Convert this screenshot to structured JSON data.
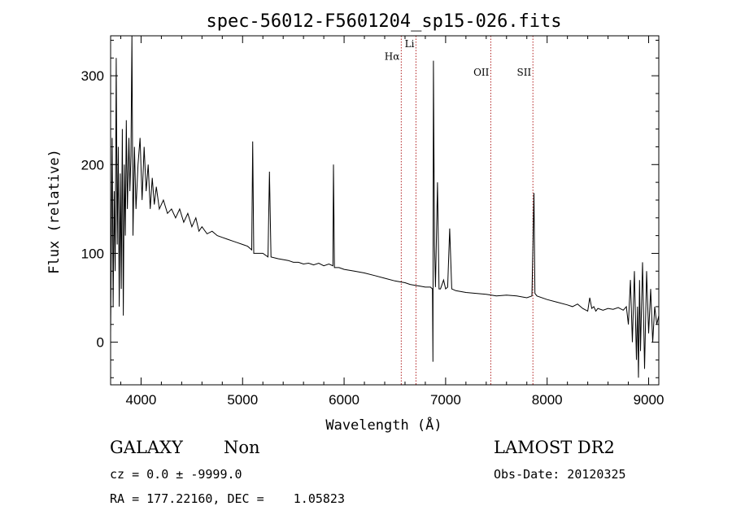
{
  "chart_data": {
    "type": "line",
    "title": "spec-56012-F5601204_sp15-026.fits",
    "xlabel": "Wavelength (Å)",
    "ylabel": "Flux (relative)",
    "xlim": [
      3700,
      9100
    ],
    "ylim": [
      -48,
      345
    ],
    "x_ticks": [
      4000,
      5000,
      6000,
      7000,
      8000,
      9000
    ],
    "y_ticks": [
      0,
      100,
      200,
      300
    ],
    "grid": false,
    "series": [
      {
        "values": [
          [
            3700,
            10
          ],
          [
            3715,
            230
          ],
          [
            3725,
            40
          ],
          [
            3735,
            170
          ],
          [
            3745,
            80
          ],
          [
            3755,
            320
          ],
          [
            3765,
            110
          ],
          [
            3775,
            220
          ],
          [
            3785,
            40
          ],
          [
            3795,
            190
          ],
          [
            3805,
            60
          ],
          [
            3815,
            240
          ],
          [
            3825,
            30
          ],
          [
            3835,
            200
          ],
          [
            3845,
            120
          ],
          [
            3855,
            250
          ],
          [
            3865,
            150
          ],
          [
            3880,
            230
          ],
          [
            3890,
            170
          ],
          [
            3900,
            210
          ],
          [
            3910,
            345
          ],
          [
            3920,
            120
          ],
          [
            3935,
            220
          ],
          [
            3950,
            150
          ],
          [
            3970,
            200
          ],
          [
            3990,
            230
          ],
          [
            4010,
            160
          ],
          [
            4030,
            220
          ],
          [
            4050,
            170
          ],
          [
            4070,
            200
          ],
          [
            4090,
            150
          ],
          [
            4110,
            185
          ],
          [
            4130,
            155
          ],
          [
            4150,
            175
          ],
          [
            4180,
            150
          ],
          [
            4220,
            160
          ],
          [
            4260,
            145
          ],
          [
            4300,
            150
          ],
          [
            4340,
            140
          ],
          [
            4380,
            150
          ],
          [
            4420,
            135
          ],
          [
            4460,
            145
          ],
          [
            4500,
            130
          ],
          [
            4540,
            140
          ],
          [
            4570,
            125
          ],
          [
            4600,
            130
          ],
          [
            4650,
            122
          ],
          [
            4700,
            125
          ],
          [
            4750,
            120
          ],
          [
            4800,
            118
          ],
          [
            4850,
            116
          ],
          [
            4900,
            114
          ],
          [
            4950,
            112
          ],
          [
            5000,
            110
          ],
          [
            5050,
            108
          ],
          [
            5090,
            104
          ],
          [
            5100,
            226
          ],
          [
            5110,
            100
          ],
          [
            5150,
            100
          ],
          [
            5200,
            100
          ],
          [
            5250,
            96
          ],
          [
            5265,
            192
          ],
          [
            5280,
            96
          ],
          [
            5350,
            94
          ],
          [
            5400,
            93
          ],
          [
            5450,
            92
          ],
          [
            5500,
            90
          ],
          [
            5550,
            90
          ],
          [
            5600,
            88
          ],
          [
            5650,
            89
          ],
          [
            5700,
            87
          ],
          [
            5750,
            89
          ],
          [
            5800,
            86
          ],
          [
            5850,
            88
          ],
          [
            5890,
            86
          ],
          [
            5895,
            200
          ],
          [
            5905,
            84
          ],
          [
            5950,
            84
          ],
          [
            6000,
            82
          ],
          [
            6100,
            80
          ],
          [
            6200,
            78
          ],
          [
            6300,
            75
          ],
          [
            6400,
            72
          ],
          [
            6500,
            69
          ],
          [
            6550,
            68
          ],
          [
            6600,
            67
          ],
          [
            6650,
            65
          ],
          [
            6700,
            64
          ],
          [
            6750,
            63
          ],
          [
            6800,
            62
          ],
          [
            6850,
            62
          ],
          [
            6870,
            60
          ],
          [
            6875,
            -22
          ],
          [
            6880,
            317
          ],
          [
            6890,
            110
          ],
          [
            6900,
            62
          ],
          [
            6920,
            180
          ],
          [
            6935,
            60
          ],
          [
            6950,
            60
          ],
          [
            6980,
            70
          ],
          [
            7000,
            60
          ],
          [
            7020,
            62
          ],
          [
            7040,
            128
          ],
          [
            7060,
            60
          ],
          [
            7100,
            58
          ],
          [
            7200,
            56
          ],
          [
            7300,
            55
          ],
          [
            7400,
            54
          ],
          [
            7450,
            53
          ],
          [
            7500,
            52
          ],
          [
            7600,
            53
          ],
          [
            7700,
            52
          ],
          [
            7800,
            50
          ],
          [
            7850,
            52
          ],
          [
            7870,
            168
          ],
          [
            7880,
            55
          ],
          [
            7900,
            52
          ],
          [
            8000,
            48
          ],
          [
            8100,
            45
          ],
          [
            8200,
            42
          ],
          [
            8250,
            40
          ],
          [
            8300,
            43
          ],
          [
            8350,
            38
          ],
          [
            8400,
            35
          ],
          [
            8420,
            50
          ],
          [
            8440,
            38
          ],
          [
            8460,
            40
          ],
          [
            8480,
            35
          ],
          [
            8500,
            38
          ],
          [
            8550,
            36
          ],
          [
            8600,
            38
          ],
          [
            8650,
            37
          ],
          [
            8700,
            39
          ],
          [
            8750,
            36
          ],
          [
            8780,
            40
          ],
          [
            8800,
            20
          ],
          [
            8820,
            70
          ],
          [
            8840,
            0
          ],
          [
            8860,
            80
          ],
          [
            8880,
            -20
          ],
          [
            8890,
            40
          ],
          [
            8900,
            -40
          ],
          [
            8910,
            70
          ],
          [
            8920,
            -10
          ],
          [
            8940,
            90
          ],
          [
            8960,
            -30
          ],
          [
            8980,
            80
          ],
          [
            9000,
            10
          ],
          [
            9020,
            60
          ],
          [
            9040,
            0
          ],
          [
            9060,
            40
          ],
          [
            9080,
            20
          ],
          [
            9100,
            30
          ]
        ]
      }
    ],
    "reference_lines": [
      {
        "label": "Hα",
        "x": 6563,
        "label_y": 318
      },
      {
        "label": "Li",
        "x": 6708,
        "label_y": 332
      },
      {
        "label": "OII",
        "x": 7445,
        "label_y": 300
      },
      {
        "label": "SII",
        "x": 7860,
        "label_y": 300
      }
    ],
    "colors": {
      "reference_line": "#b22222",
      "data": "#000000"
    }
  },
  "info": {
    "class": "GALAXY",
    "subclass": "Non",
    "survey": "LAMOST DR2",
    "cz": "cz = 0.0 ± -9999.0",
    "obs_date": "Obs-Date: 20120325",
    "coords": "RA = 177.22160, DEC =    1.05823"
  }
}
